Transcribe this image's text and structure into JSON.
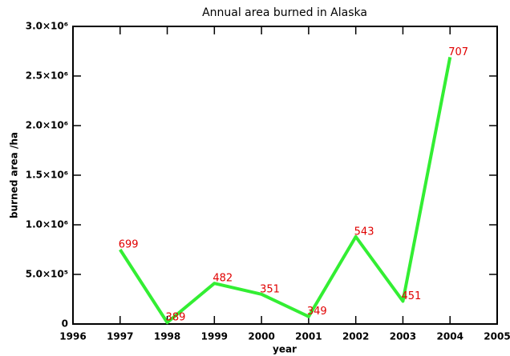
{
  "chart_data": {
    "type": "line",
    "title": "Annual area burned in Alaska",
    "x_label": "year",
    "y_label": "burned area /ha",
    "x": [
      1997,
      1998,
      1999,
      2000,
      2001,
      2002,
      2003,
      2004
    ],
    "values": [
      750000,
      15000,
      410000,
      300000,
      75000,
      880000,
      230000,
      2690000
    ],
    "point_labels": [
      "699",
      "389",
      "482",
      "351",
      "349",
      "543",
      "451",
      "707"
    ],
    "color": "#33ee33",
    "label_color": "#e00000",
    "xlim": [
      1996,
      2005
    ],
    "xticks": [
      1996,
      1997,
      1998,
      1999,
      2000,
      2001,
      2002,
      2003,
      2004,
      2005
    ],
    "ylim": [
      0,
      3000000
    ],
    "yticks": [
      0,
      {
        "value": 500000,
        "label": "5.0×10⁵"
      },
      {
        "value": 1000000,
        "label": "1.0×10⁶"
      },
      {
        "value": 1500000,
        "label": "1.5×10⁶"
      },
      {
        "value": 2000000,
        "label": "2.0×10⁶"
      },
      {
        "value": 2500000,
        "label": "2.5×10⁶"
      },
      {
        "value": 3000000,
        "label": "3.0×10⁶"
      }
    ]
  }
}
